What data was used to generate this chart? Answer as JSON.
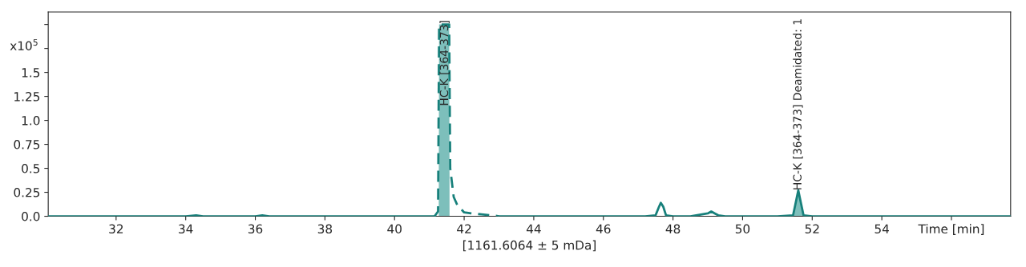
{
  "chart_data": {
    "type": "line",
    "xlabel": "[1161.6064 ± 5 mDa]",
    "ylabel": "x10$^{5}$",
    "xlim": [
      30.05,
      57.7
    ],
    "xticks": [
      32,
      34,
      36,
      38,
      40,
      42,
      44,
      46,
      48,
      50,
      52,
      54,
      {
        "value": 56,
        "label": "Time [min]"
      }
    ],
    "ylim": [
      0,
      2.13
    ],
    "yticks": [
      {
        "value": 0,
        "label": "0.0"
      },
      0.25,
      0.5,
      0.75,
      {
        "value": 1,
        "label": "1.0"
      },
      1.25,
      1.5,
      {
        "value": 1.75,
        "label": null
      },
      {
        "value": 2,
        "label": null
      }
    ],
    "grid": false,
    "series": [
      {
        "line_style": "solid",
        "color": "#17807b",
        "x": [
          30.05,
          31,
          32,
          33,
          34,
          34.3,
          34.5,
          35,
          36,
          36.2,
          36.4,
          37,
          38,
          39,
          40,
          41,
          41.15
        ],
        "values": [
          0,
          0,
          0,
          0,
          0,
          0.01,
          0,
          0,
          0,
          0.01,
          0,
          0,
          0,
          0,
          0,
          0,
          0
        ]
      },
      {
        "line_style": "dashed",
        "color": "#17807b",
        "x": [
          41.15,
          41.25,
          41.28,
          41.3,
          41.55,
          41.57,
          41.6,
          41.7,
          41.8,
          41.9,
          42,
          42.2,
          42.5,
          42.8,
          43
        ],
        "values": [
          0,
          0.05,
          2.0,
          null,
          null,
          2.0,
          0.5,
          0.2,
          0.12,
          0.08,
          0.04,
          0.03,
          0.02,
          0.01,
          0
        ]
      },
      {
        "line_style": "solid",
        "color": "#17807b",
        "x": [
          43,
          44,
          45,
          46,
          47,
          47.2,
          47.5,
          47.6,
          47.65,
          47.72,
          47.8,
          48,
          48.5,
          49,
          49.1,
          49.2,
          49.3,
          49.5,
          50,
          51,
          51.45,
          51.6,
          51.75,
          52,
          53,
          54,
          55,
          56,
          57,
          57.7
        ],
        "values": [
          0,
          0,
          0,
          0,
          0,
          0,
          0.01,
          0.1,
          0.14,
          0.1,
          0.01,
          0,
          0,
          0.03,
          0.05,
          0.03,
          0.01,
          0,
          0,
          0,
          0.01,
          0.27,
          0.01,
          0,
          0,
          0,
          0,
          0,
          0,
          0
        ]
      },
      {
        "type": "area",
        "color": "#7dbfbb",
        "x": [
          41.27,
          41.28,
          41.57,
          41.58
        ],
        "values": [
          0.02,
          2.0,
          2.0,
          0.3
        ]
      },
      {
        "type": "area",
        "color": "#7dbfbb",
        "x": [
          51.45,
          51.6,
          51.75
        ],
        "values": [
          0.01,
          0.27,
          0.01
        ]
      }
    ],
    "annotations": [
      {
        "text": "HC-K [364-373]",
        "x": 41.45,
        "y": 1.15
      },
      {
        "text": "HC-K [364-373] Deamidated: 1",
        "x": 51.6,
        "y": 0.27
      }
    ]
  }
}
